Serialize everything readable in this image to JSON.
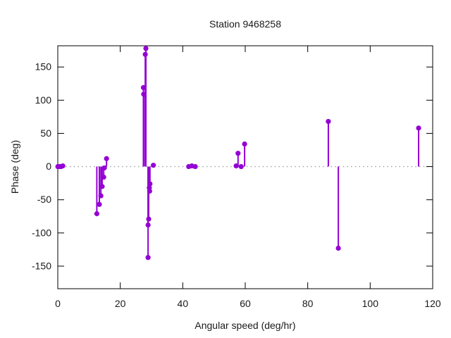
{
  "window": {
    "background": "#ffffff"
  },
  "chart_data": {
    "type": "scatter",
    "plot_style": "impulses+points",
    "title": "Station 9468258",
    "xlabel": "Angular speed (deg/hr)",
    "ylabel": "Phase (deg)",
    "xlim": [
      0,
      120
    ],
    "ylim": [
      -184,
      182
    ],
    "xticks": [
      0,
      20,
      40,
      60,
      80,
      100,
      120
    ],
    "yticks": [
      -150,
      -100,
      -50,
      0,
      50,
      100,
      150
    ],
    "grid": false,
    "legend_position": "none",
    "zero_axis_style": "dotted",
    "colors": {
      "series": "#9400D3",
      "border": "#000000",
      "zero_line": "#9e9e9e",
      "text": "#1a1a1a"
    },
    "series": [
      {
        "name": "phase",
        "color": "#9400D3",
        "points": [
          {
            "x": 0.04,
            "y": 0
          },
          {
            "x": 0.08,
            "y": 0
          },
          {
            "x": 0.54,
            "y": 0
          },
          {
            "x": 1.02,
            "y": 0
          },
          {
            "x": 1.6,
            "y": 1
          },
          {
            "x": 12.5,
            "y": -71
          },
          {
            "x": 13.3,
            "y": -57
          },
          {
            "x": 13.8,
            "y": -44
          },
          {
            "x": 14.2,
            "y": -30
          },
          {
            "x": 14.7,
            "y": -16
          },
          {
            "x": 14.9,
            "y": -2
          },
          {
            "x": 15.6,
            "y": 12
          },
          {
            "x": 27.4,
            "y": 119
          },
          {
            "x": 27.5,
            "y": 109
          },
          {
            "x": 28.0,
            "y": 169
          },
          {
            "x": 28.2,
            "y": 178
          },
          {
            "x": 28.9,
            "y": -137
          },
          {
            "x": 28.9,
            "y": -88
          },
          {
            "x": 29.1,
            "y": -79
          },
          {
            "x": 29.3,
            "y": -32
          },
          {
            "x": 29.5,
            "y": -26
          },
          {
            "x": 29.4,
            "y": -37
          },
          {
            "x": 30.6,
            "y": 2
          },
          {
            "x": 41.9,
            "y": 0
          },
          {
            "x": 42.9,
            "y": 1
          },
          {
            "x": 44.0,
            "y": 0
          },
          {
            "x": 57.1,
            "y": 1
          },
          {
            "x": 57.7,
            "y": 20
          },
          {
            "x": 58.7,
            "y": 0
          },
          {
            "x": 59.8,
            "y": 34
          },
          {
            "x": 86.6,
            "y": 68
          },
          {
            "x": 89.8,
            "y": -123
          },
          {
            "x": 115.5,
            "y": 58
          }
        ]
      }
    ]
  }
}
